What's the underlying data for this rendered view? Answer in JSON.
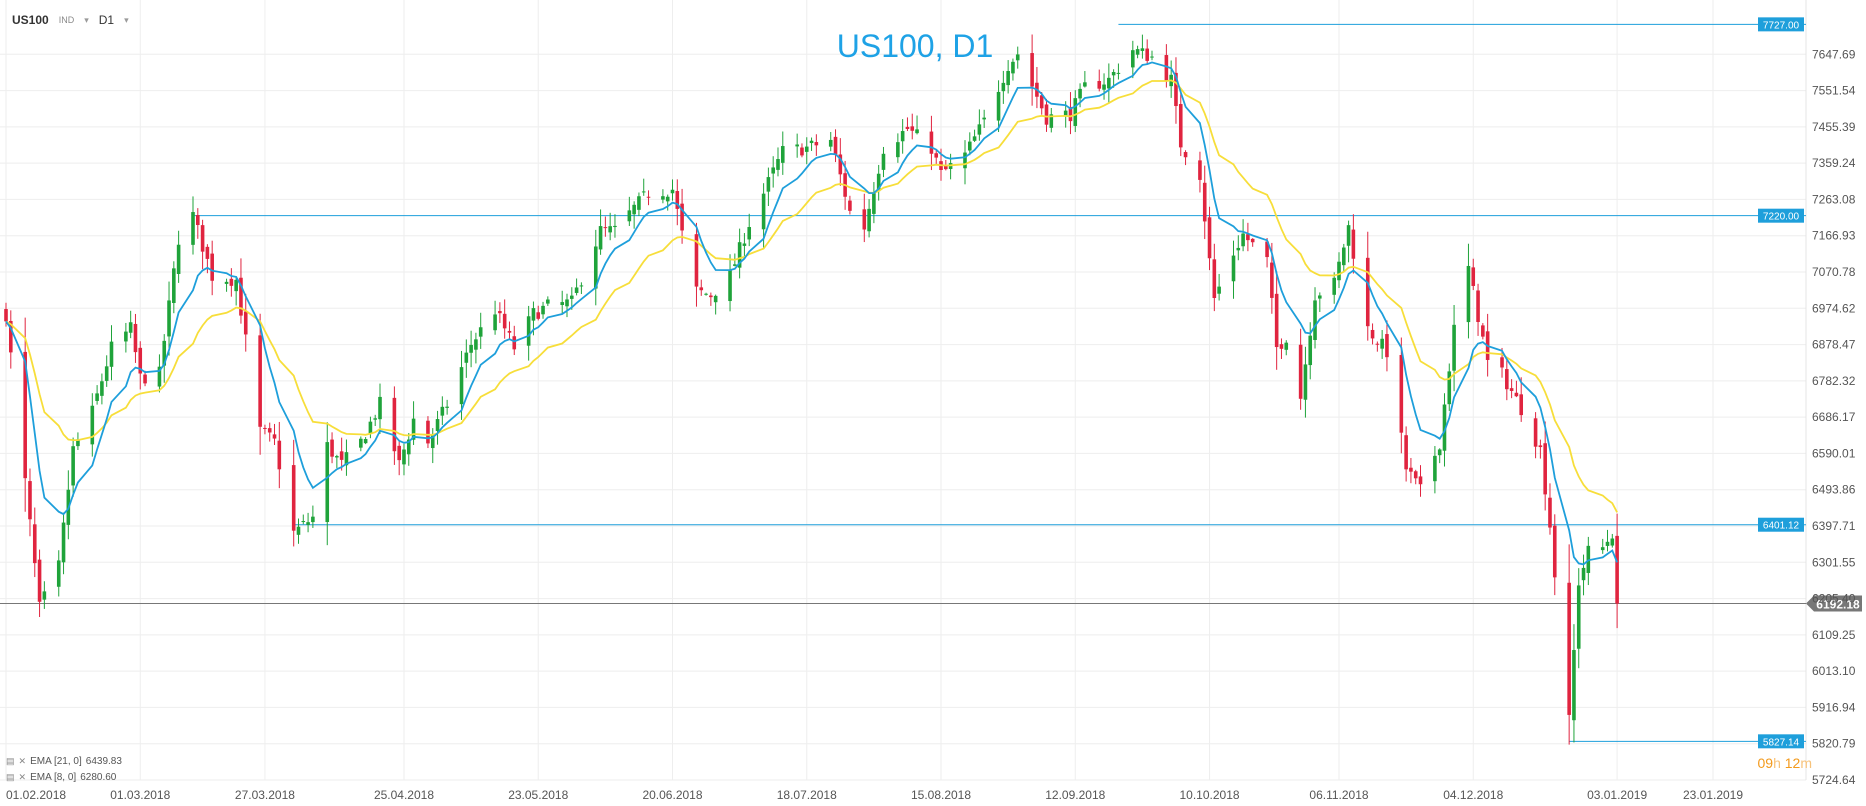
{
  "header": {
    "symbol": "US100",
    "exchange": "IND",
    "timeframe": "D1"
  },
  "chart_data": {
    "type": "candlestick",
    "title": "US100, D1",
    "y_ticks": [
      "7647.69",
      "7551.54",
      "7455.39",
      "7359.24",
      "7263.08",
      "7166.93",
      "7070.78",
      "6974.62",
      "6878.47",
      "6782.32",
      "6686.17",
      "6590.01",
      "6493.86",
      "6397.71",
      "6301.55",
      "6205.40",
      "6109.25",
      "6013.10",
      "5916.94",
      "5820.79",
      "5724.64"
    ],
    "x_ticks": [
      "01.02.2018",
      "01.03.2018",
      "27.03.2018",
      "25.04.2018",
      "23.05.2018",
      "20.06.2018",
      "18.07.2018",
      "15.08.2018",
      "12.09.2018",
      "10.10.2018",
      "06.11.2018",
      "04.12.2018",
      "03.01.2019",
      "23.01.2019"
    ],
    "ylim": [
      5724.64,
      7743.84
    ],
    "levels": [
      {
        "label": "7727.00",
        "value": 7727.0,
        "from": "2018-09-21"
      },
      {
        "label": "7220.00",
        "value": 7220.0,
        "from": "2018-03-12"
      },
      {
        "label": "6401.12",
        "value": 6401.12,
        "from": "2018-04-02"
      },
      {
        "label": "5827.14",
        "value": 5827.14,
        "from": "2018-12-24"
      }
    ],
    "current_price": {
      "label": "6192.18",
      "value": 6192.18
    },
    "indicators": [
      {
        "label": "EMA [21, 0]",
        "value": "6439.83",
        "color": "#f7de3a"
      },
      {
        "label": "EMA [8, 0]",
        "value": "6280.60",
        "color": "#1e9fdb"
      }
    ],
    "colors": {
      "up": "#1fa33a",
      "down": "#e0243f",
      "level": "#1e9fdb",
      "title": "#1ea2e6",
      "current": "#777777"
    },
    "anchors": [
      [
        "2018-02-01",
        6960
      ],
      [
        "2018-02-08",
        6180
      ],
      [
        "2018-02-12",
        6290
      ],
      [
        "2018-02-15",
        6600
      ],
      [
        "2018-02-19",
        6700
      ],
      [
        "2018-02-23",
        6870
      ],
      [
        "2018-02-27",
        6920
      ],
      [
        "2018-03-01",
        6790
      ],
      [
        "2018-03-05",
        6800
      ],
      [
        "2018-03-09",
        7160
      ],
      [
        "2018-03-12",
        7220
      ],
      [
        "2018-03-16",
        7060
      ],
      [
        "2018-03-21",
        7050
      ],
      [
        "2018-03-26",
        6650
      ],
      [
        "2018-03-29",
        6620
      ],
      [
        "2018-04-02",
        6380
      ],
      [
        "2018-04-06",
        6420
      ],
      [
        "2018-04-09",
        6610
      ],
      [
        "2018-04-12",
        6560
      ],
      [
        "2018-04-16",
        6620
      ],
      [
        "2018-04-20",
        6720
      ],
      [
        "2018-04-24",
        6560
      ],
      [
        "2018-04-27",
        6680
      ],
      [
        "2018-04-30",
        6620
      ],
      [
        "2018-05-04",
        6720
      ],
      [
        "2018-05-09",
        6880
      ],
      [
        "2018-05-14",
        6970
      ],
      [
        "2018-05-18",
        6870
      ],
      [
        "2018-05-22",
        6960
      ],
      [
        "2018-05-25",
        6980
      ],
      [
        "2018-05-30",
        6990
      ],
      [
        "2018-06-05",
        7180
      ],
      [
        "2018-06-08",
        7180
      ],
      [
        "2018-06-12",
        7240
      ],
      [
        "2018-06-15",
        7280
      ],
      [
        "2018-06-20",
        7290
      ],
      [
        "2018-06-22",
        7170
      ],
      [
        "2018-06-25",
        7020
      ],
      [
        "2018-06-28",
        7010
      ],
      [
        "2018-07-02",
        7060
      ],
      [
        "2018-07-06",
        7200
      ],
      [
        "2018-07-09",
        7280
      ],
      [
        "2018-07-13",
        7390
      ],
      [
        "2018-07-18",
        7400
      ],
      [
        "2018-07-23",
        7420
      ],
      [
        "2018-07-27",
        7230
      ],
      [
        "2018-07-30",
        7190
      ],
      [
        "2018-08-03",
        7400
      ],
      [
        "2018-08-08",
        7450
      ],
      [
        "2018-08-13",
        7400
      ],
      [
        "2018-08-15",
        7330
      ],
      [
        "2018-08-20",
        7380
      ],
      [
        "2018-08-24",
        7470
      ],
      [
        "2018-08-29",
        7620
      ],
      [
        "2018-08-31",
        7650
      ],
      [
        "2018-09-06",
        7480
      ],
      [
        "2018-09-11",
        7490
      ],
      [
        "2018-09-14",
        7560
      ],
      [
        "2018-09-19",
        7580
      ],
      [
        "2018-09-24",
        7660
      ],
      [
        "2018-09-28",
        7640
      ],
      [
        "2018-10-02",
        7580
      ],
      [
        "2018-10-04",
        7410
      ],
      [
        "2018-10-08",
        7330
      ],
      [
        "2018-10-10",
        7100
      ],
      [
        "2018-10-11",
        7000
      ],
      [
        "2018-10-15",
        7120
      ],
      [
        "2018-10-17",
        7170
      ],
      [
        "2018-10-22",
        7100
      ],
      [
        "2018-10-24",
        6870
      ],
      [
        "2018-10-26",
        6900
      ],
      [
        "2018-10-29",
        6740
      ],
      [
        "2018-11-01",
        7010
      ],
      [
        "2018-11-05",
        7040
      ],
      [
        "2018-11-08",
        7190
      ],
      [
        "2018-11-12",
        6920
      ],
      [
        "2018-11-16",
        6860
      ],
      [
        "2018-11-20",
        6550
      ],
      [
        "2018-11-23",
        6490
      ],
      [
        "2018-11-27",
        6620
      ],
      [
        "2018-11-30",
        6920
      ],
      [
        "2018-12-03",
        7080
      ],
      [
        "2018-12-07",
        6830
      ],
      [
        "2018-12-10",
        6800
      ],
      [
        "2018-12-14",
        6710
      ],
      [
        "2018-12-18",
        6600
      ],
      [
        "2018-12-20",
        6400
      ],
      [
        "2018-12-24",
        5880
      ],
      [
        "2018-12-26",
        6250
      ],
      [
        "2018-12-28",
        6330
      ],
      [
        "2018-12-31",
        6340
      ],
      [
        "2019-01-02",
        6380
      ],
      [
        "2019-01-03",
        6192.18
      ]
    ]
  }
}
